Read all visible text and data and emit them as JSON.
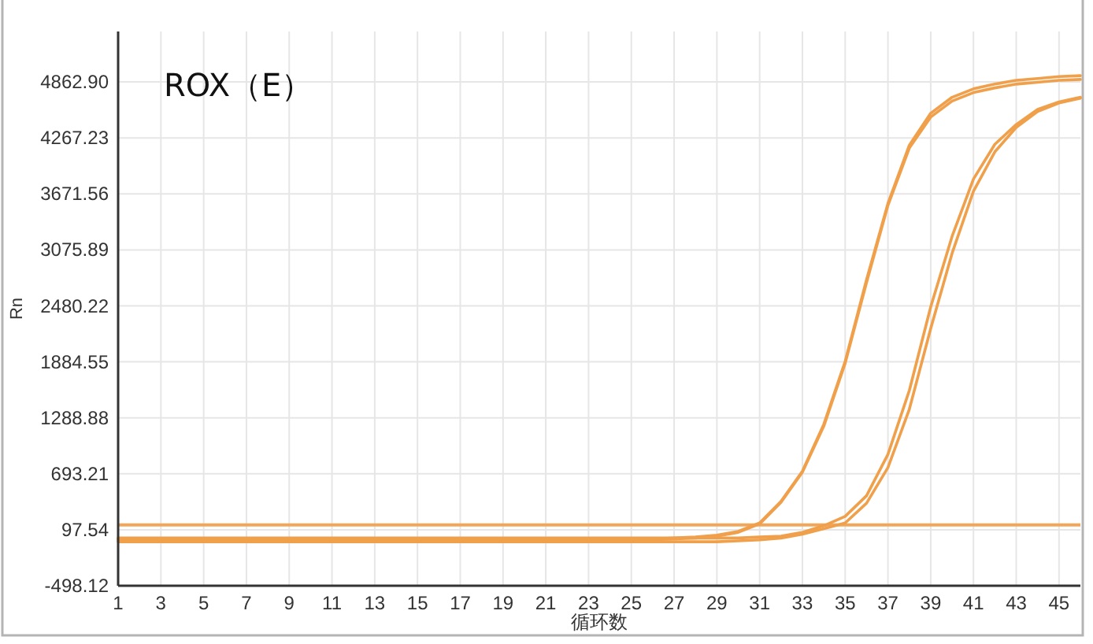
{
  "chart_data": {
    "type": "line",
    "title": "ROX（E）",
    "xlabel": "循环数",
    "ylabel": "Rn",
    "x": [
      1,
      2,
      3,
      4,
      5,
      6,
      7,
      8,
      9,
      10,
      11,
      12,
      13,
      14,
      15,
      16,
      17,
      18,
      19,
      20,
      21,
      22,
      23,
      24,
      25,
      26,
      27,
      28,
      29,
      30,
      31,
      32,
      33,
      34,
      35,
      36,
      37,
      38,
      39,
      40,
      41,
      42,
      43,
      44,
      45,
      46
    ],
    "series": [
      {
        "color": "#f0a04b",
        "values": [
          0,
          0,
          0,
          0,
          0,
          0,
          0,
          0,
          0,
          0,
          0,
          0,
          0,
          0,
          0,
          0,
          0,
          0,
          0,
          0,
          0,
          0,
          0,
          0,
          0,
          0,
          10,
          20,
          40,
          80,
          170,
          400,
          720,
          1220,
          1890,
          2760,
          3570,
          4190,
          4530,
          4700,
          4790,
          4840,
          4880,
          4900,
          4920,
          4930
        ]
      },
      {
        "color": "#f0a04b",
        "values": [
          -10,
          -10,
          -10,
          -10,
          -10,
          -10,
          -10,
          -10,
          -10,
          -10,
          -10,
          -10,
          -10,
          -10,
          -10,
          -10,
          -10,
          -10,
          -10,
          -10,
          -10,
          -10,
          -10,
          -10,
          -10,
          -10,
          0,
          10,
          30,
          70,
          160,
          390,
          710,
          1200,
          1870,
          2730,
          3550,
          4160,
          4490,
          4660,
          4750,
          4800,
          4840,
          4860,
          4880,
          4890
        ]
      },
      {
        "color": "#f0a04b",
        "values": [
          10,
          10,
          10,
          10,
          10,
          10,
          10,
          10,
          10,
          10,
          10,
          10,
          10,
          10,
          10,
          10,
          10,
          10,
          10,
          10,
          10,
          10,
          10,
          10,
          10,
          10,
          10,
          10,
          10,
          10,
          20,
          30,
          70,
          140,
          240,
          460,
          900,
          1580,
          2470,
          3220,
          3830,
          4200,
          4410,
          4570,
          4650,
          4700
        ]
      },
      {
        "color": "#f0a04b",
        "values": [
          -30,
          -30,
          -30,
          -30,
          -30,
          -30,
          -30,
          -30,
          -30,
          -30,
          -30,
          -30,
          -30,
          -30,
          -30,
          -30,
          -30,
          -30,
          -30,
          -30,
          -30,
          -30,
          -30,
          -30,
          -30,
          -30,
          -30,
          -30,
          -30,
          -20,
          -10,
          10,
          50,
          110,
          170,
          380,
          760,
          1380,
          2240,
          3040,
          3700,
          4120,
          4380,
          4550,
          4640,
          4690
        ]
      }
    ],
    "xlim": [
      1,
      46
    ],
    "xticks": [
      1,
      3,
      5,
      7,
      9,
      11,
      13,
      15,
      17,
      19,
      21,
      23,
      25,
      27,
      29,
      31,
      33,
      35,
      37,
      39,
      41,
      43,
      45
    ],
    "ylim": [
      -498.12,
      5400
    ],
    "yticks": [
      -498.12,
      97.54,
      693.21,
      1288.88,
      1884.55,
      2480.22,
      3075.89,
      3671.56,
      4267.23,
      {
        "value": 4862.9,
        "label": "4862.90"
      }
    ],
    "ref_lines": [
      {
        "axis": "y",
        "value": 150,
        "color": "#f2a65a"
      }
    ],
    "grid": true
  }
}
